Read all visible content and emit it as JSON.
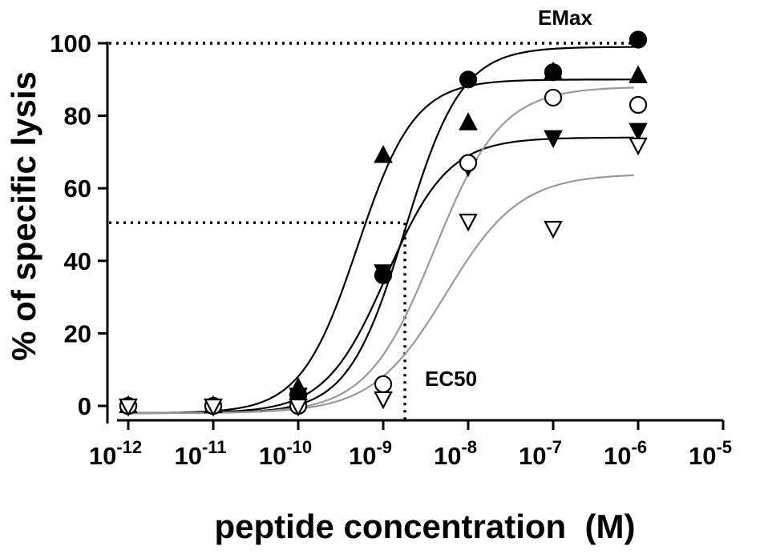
{
  "chart_data": {
    "type": "scatter",
    "title": "",
    "xlabel": "peptide concentration  (M)",
    "ylabel": "% of specific lysis",
    "x_scale": "log",
    "xlim": [
      1e-12,
      1e-05
    ],
    "ylim": [
      0,
      100
    ],
    "x_ticks": [
      {
        "value": 1e-12,
        "base": "10",
        "exp": "-12"
      },
      {
        "value": 1e-11,
        "base": "10",
        "exp": "-11"
      },
      {
        "value": 1e-10,
        "base": "10",
        "exp": "-10"
      },
      {
        "value": 1e-09,
        "base": "10",
        "exp": "-9"
      },
      {
        "value": 1e-08,
        "base": "10",
        "exp": "-8"
      },
      {
        "value": 1e-07,
        "base": "10",
        "exp": "-7"
      },
      {
        "value": 1e-06,
        "base": "10",
        "exp": "-6"
      },
      {
        "value": 1e-05,
        "base": "10",
        "exp": "-5"
      }
    ],
    "y_ticks": [
      "0",
      "20",
      "40",
      "60",
      "80",
      "100"
    ],
    "grid": false,
    "legend": "none",
    "annotations": {
      "emax_label": "EMax",
      "emax_value": 100,
      "ec50_label": "EC50",
      "ec50_x": 1.8e-09,
      "ec50_y": 50.5
    },
    "series": [
      {
        "marker": "circle-filled",
        "color": "#000000",
        "x": [
          1e-12,
          1e-11,
          1e-10,
          1e-09,
          1e-08,
          1e-07,
          1e-06
        ],
        "y": [
          0,
          0,
          3,
          36,
          90,
          92,
          101
        ],
        "fit": {
          "bottom": -2,
          "top": 99,
          "ec50": 1.8e-09,
          "hill": 1.3,
          "color": "#000000"
        }
      },
      {
        "marker": "triangle-up-filled",
        "color": "#000000",
        "x": [
          1e-12,
          1e-11,
          1e-10,
          1e-09,
          1e-08,
          1e-07,
          1e-06
        ],
        "y": [
          0,
          0,
          5,
          69,
          78,
          92,
          91
        ],
        "fit": {
          "bottom": -2,
          "top": 90,
          "ec50": 5e-10,
          "hill": 1.3,
          "color": "#000000"
        }
      },
      {
        "marker": "triangle-down-filled",
        "color": "#000000",
        "x": [
          1e-12,
          1e-11,
          1e-10,
          1e-09,
          1e-08,
          1e-07,
          1e-06
        ],
        "y": [
          0,
          0,
          3,
          37,
          66,
          74,
          76
        ],
        "fit": {
          "bottom": -2,
          "top": 74,
          "ec50": 1.1e-09,
          "hill": 1.2,
          "color": "#000000"
        }
      },
      {
        "marker": "circle-open",
        "color": "#000000",
        "x": [
          1e-12,
          1e-11,
          1e-10,
          1e-09,
          1e-08,
          1e-07,
          1e-06
        ],
        "y": [
          0,
          0,
          0,
          6,
          67,
          85,
          83
        ],
        "fit": {
          "bottom": -2,
          "top": 88,
          "ec50": 4e-09,
          "hill": 1.1,
          "color": "#999999"
        }
      },
      {
        "marker": "triangle-down-open",
        "color": "#000000",
        "x": [
          1e-12,
          1e-11,
          1e-10,
          1e-09,
          1e-08,
          1e-07,
          1e-06
        ],
        "y": [
          0,
          0,
          0,
          2,
          51,
          49,
          72
        ],
        "fit": {
          "bottom": -2,
          "top": 64,
          "ec50": 5.5e-09,
          "hill": 1.0,
          "color": "#999999"
        }
      }
    ]
  }
}
